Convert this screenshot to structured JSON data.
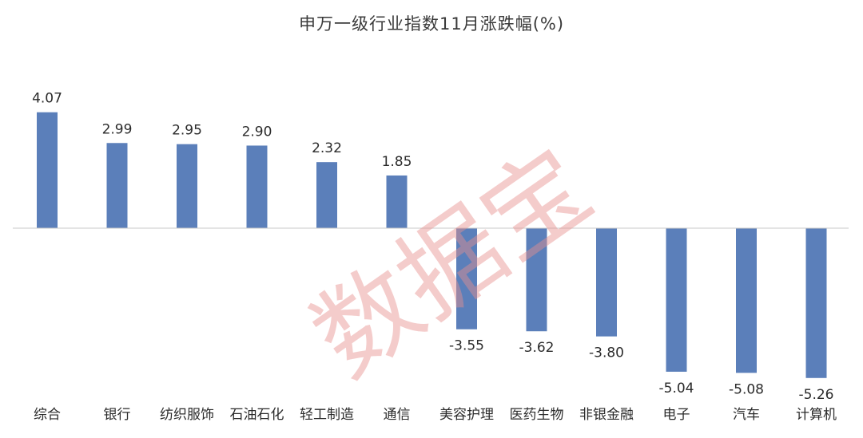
{
  "chart_data": {
    "type": "bar",
    "title": "申万一级行业指数11月涨跌幅(%)",
    "categories": [
      "综合",
      "银行",
      "纺织服饰",
      "石油石化",
      "轻工制造",
      "通信",
      "美容护理",
      "医药生物",
      "非银金融",
      "电子",
      "汽车",
      "计算机"
    ],
    "values": [
      4.07,
      2.99,
      2.95,
      2.9,
      2.32,
      1.85,
      -3.55,
      -3.62,
      -3.8,
      -5.04,
      -5.08,
      -5.26
    ],
    "value_labels": [
      "4.07",
      "2.99",
      "2.95",
      "2.90",
      "2.32",
      "1.85",
      "-3.55",
      "-3.62",
      "-3.80",
      "-5.04",
      "-5.08",
      "-5.26"
    ],
    "xlabel": "",
    "ylabel": "",
    "ylim": [
      -5.26,
      4.07
    ],
    "grid": false,
    "legend": "none",
    "colors": {
      "bar": "#5b7fba",
      "axis": "#c8c8c8",
      "label": "#2b2b2b",
      "title": "#3a3a3a"
    }
  },
  "watermark": {
    "text": "数据宝",
    "color": "#e8908e"
  }
}
